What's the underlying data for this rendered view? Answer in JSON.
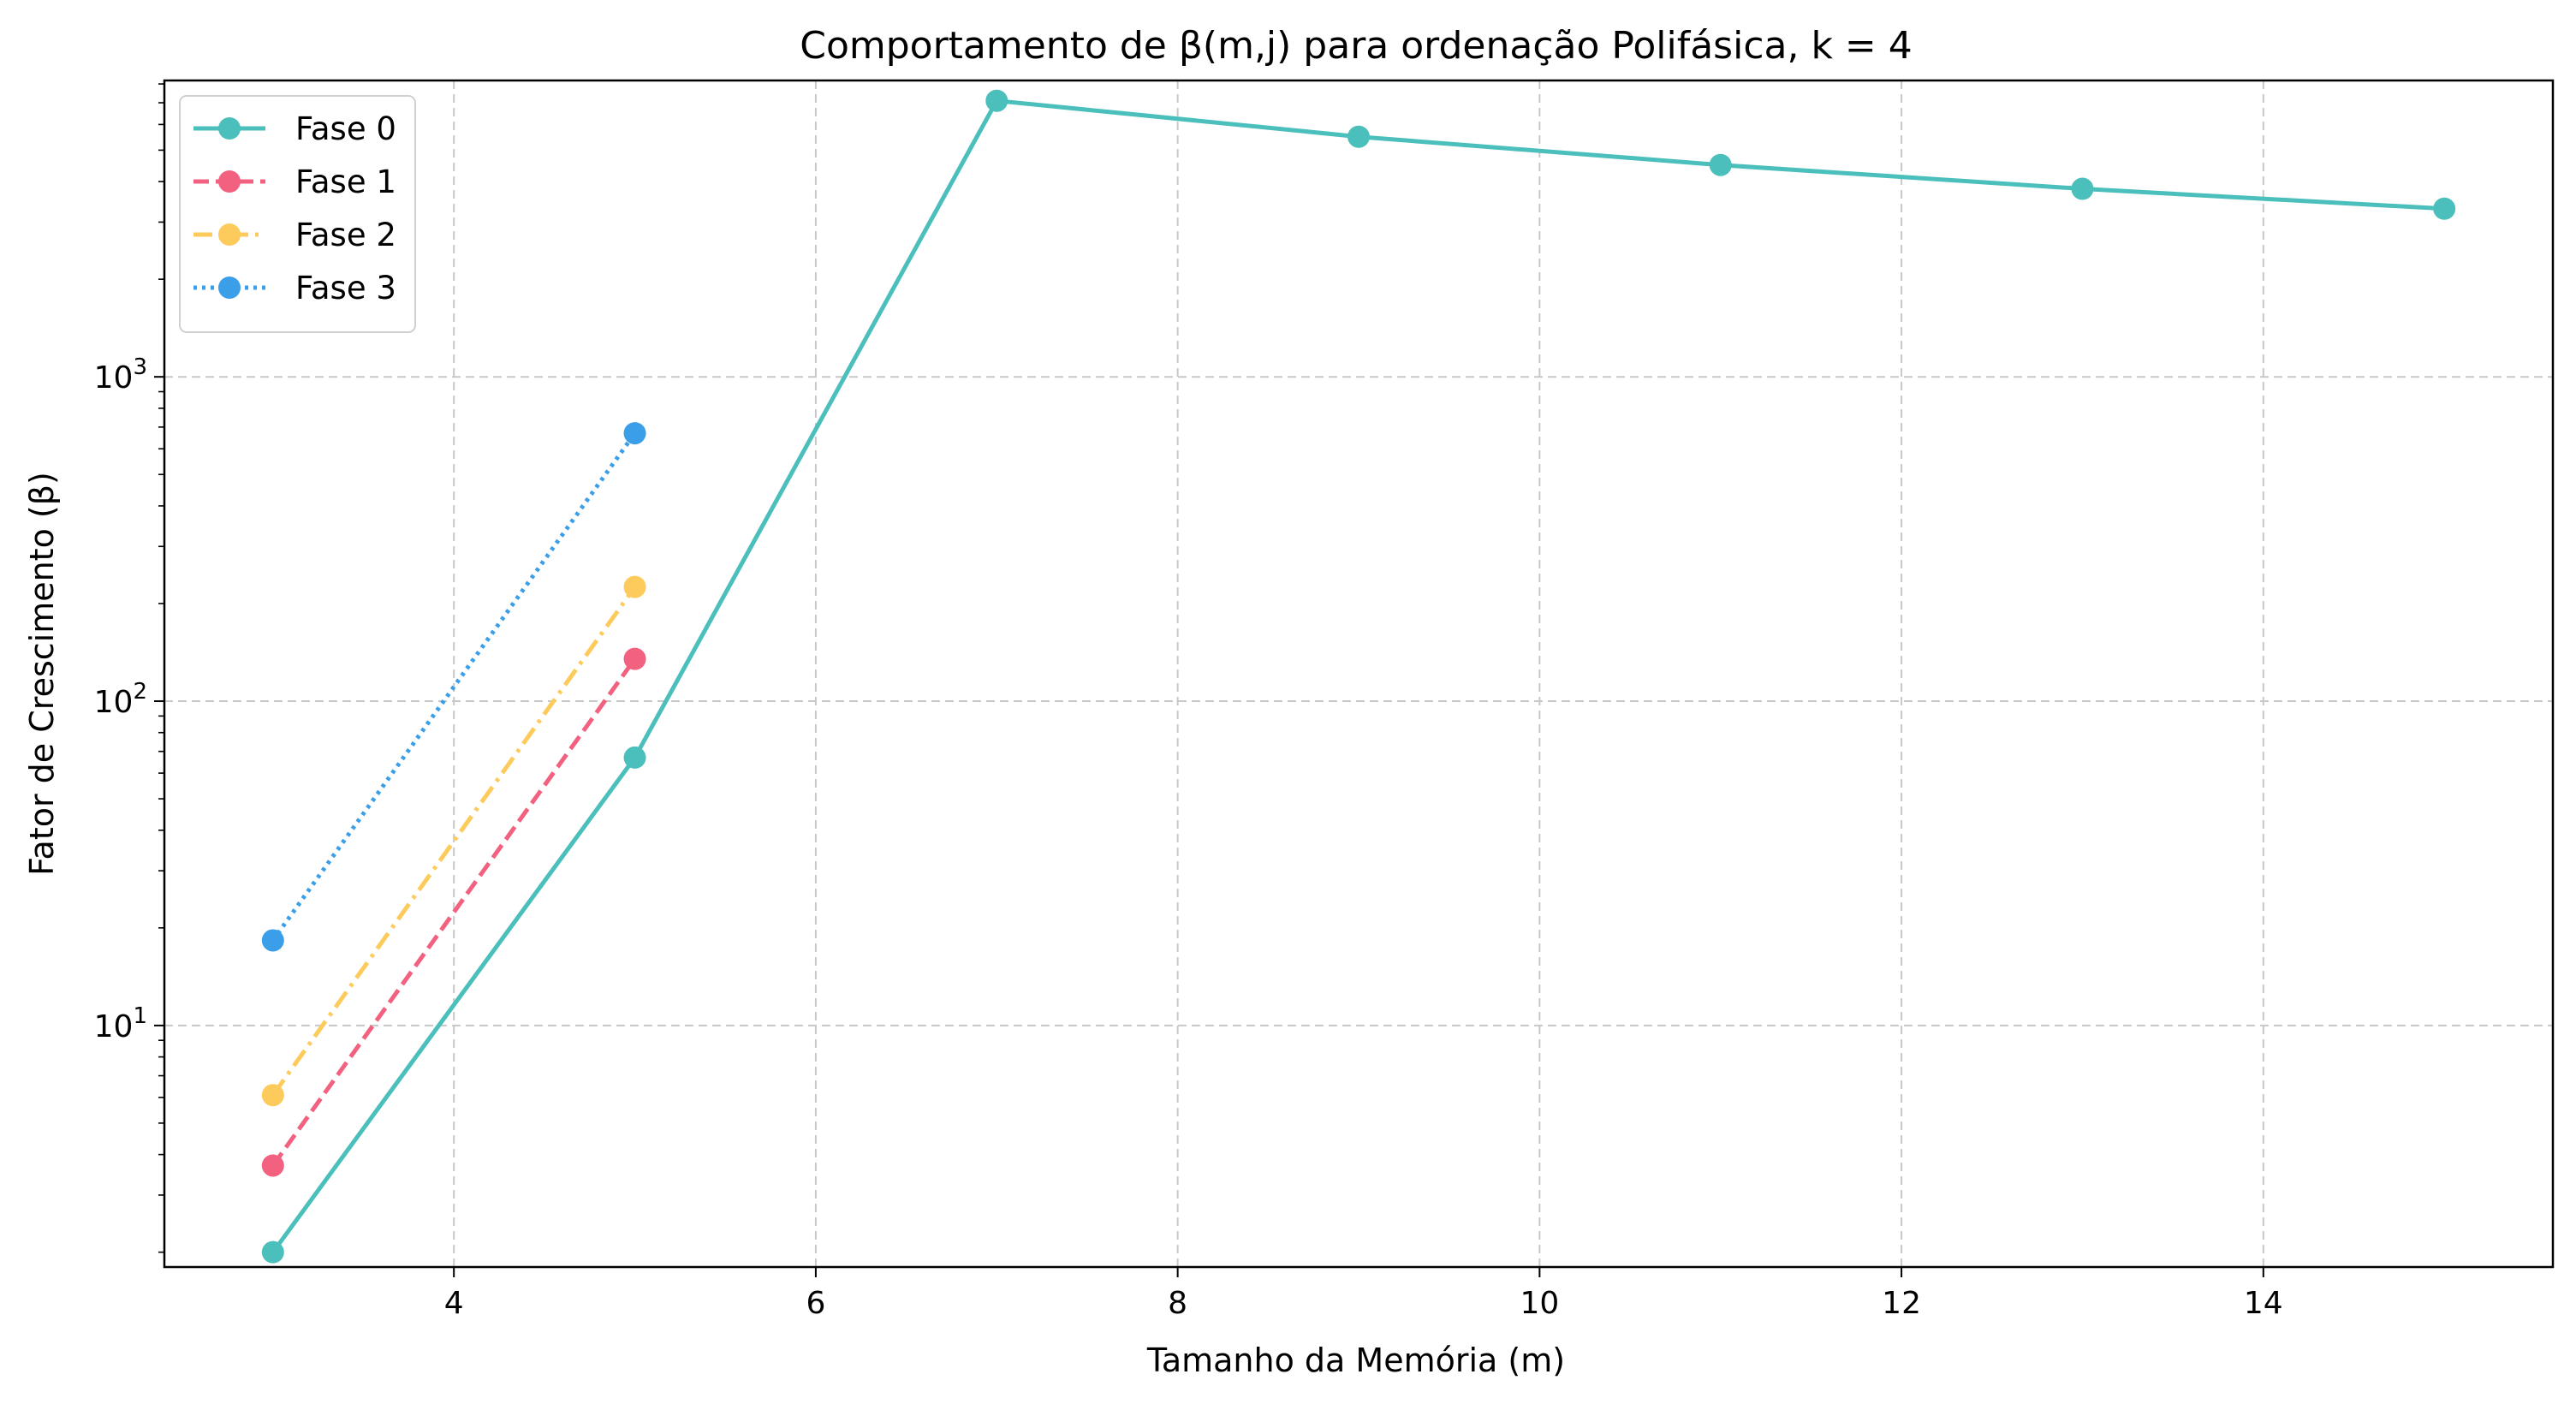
{
  "chart_data": {
    "type": "line",
    "title": "Comportamento de β(m,j) para ordenação Polifásica, k = 4",
    "xlabel": "Tamanho da Memória (m)",
    "ylabel": "Fator de Crescimento (β)",
    "xlim": [
      2.4,
      15.6
    ],
    "ylim": [
      1.8,
      8200
    ],
    "yscale": "log",
    "grid": true,
    "legend_position": "top-left",
    "x_ticks": [
      4,
      6,
      8,
      10,
      12,
      14
    ],
    "y_ticks": [
      {
        "value": 10,
        "base": "10",
        "exp": "1"
      },
      {
        "value": 100,
        "base": "10",
        "exp": "2"
      },
      {
        "value": 1000,
        "base": "10",
        "exp": "3"
      }
    ],
    "series": [
      {
        "name": "Fase 0",
        "color": "#4bbfbb",
        "dash": "solid",
        "x": [
          3,
          5,
          7,
          9,
          11,
          13,
          15
        ],
        "y": [
          2,
          67,
          7100,
          5500,
          4500,
          3800,
          3300
        ]
      },
      {
        "name": "Fase 1",
        "color": "#f2617f",
        "dash": "dashed",
        "x": [
          3,
          5
        ],
        "y": [
          3.7,
          135
        ]
      },
      {
        "name": "Fase 2",
        "color": "#fdcb5b",
        "dash": "dashdot",
        "x": [
          3,
          5
        ],
        "y": [
          6.1,
          225
        ]
      },
      {
        "name": "Fase 3",
        "color": "#3a9ee8",
        "dash": "dotted",
        "x": [
          3,
          5
        ],
        "y": [
          18.3,
          670
        ]
      }
    ]
  }
}
